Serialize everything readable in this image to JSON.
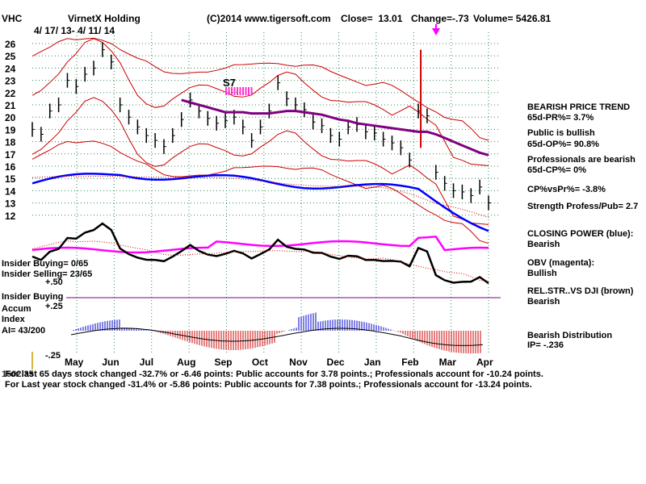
{
  "header": {
    "ticker": "VHC",
    "company": "VirnetX Holding",
    "source": "(C)2014 www.tigersoft.com",
    "close": "Close=  13.01",
    "change": "Change=-.73",
    "volume": "Volume= 5426.81",
    "date_range": "4/ 17/ 13-  4/ 11/ 14"
  },
  "chart_data": {
    "type": "line",
    "title": "VirnetX Holding",
    "x_categories": [
      "May",
      "Jun",
      "Jul",
      "Aug",
      "Sep",
      "Oct",
      "Nov",
      "Dec",
      "Jan",
      "Feb",
      "Mar",
      "Apr"
    ],
    "y_ticks": [
      12,
      13,
      14,
      15,
      16,
      17,
      18,
      19,
      20,
      21,
      22,
      23,
      24,
      25,
      26
    ],
    "ylim": [
      11.5,
      26.5
    ],
    "grid": true,
    "price_series": {
      "name": "Close",
      "values": [
        19,
        18.6,
        20.5,
        21,
        23,
        22.5,
        23.5,
        24,
        25.5,
        24.5,
        21,
        20,
        19.2,
        18.5,
        18.1,
        17.6,
        18.5,
        19.8,
        21.4,
        20.5,
        19.9,
        19.5,
        19.7,
        20,
        19.2,
        18.1,
        19.2,
        20.5,
        22.8,
        21.5,
        21,
        20.6,
        19.6,
        19.3,
        18.5,
        18.2,
        19.2,
        19.4,
        18.8,
        18.7,
        18.2,
        17.9,
        17.5,
        16.5,
        20.5,
        20.1,
        15.5,
        14.6,
        14,
        13.9,
        13.6,
        14.3,
        13.01
      ]
    },
    "ma_65_day": {
      "name": "65-day MA",
      "color": "#800080",
      "values": [
        null,
        null,
        null,
        null,
        null,
        null,
        null,
        null,
        null,
        null,
        null,
        null,
        null,
        null,
        null,
        null,
        null,
        21.4,
        21.2,
        21,
        20.8,
        20.6,
        20.4,
        20.4,
        20.4,
        20.3,
        20.3,
        20.3,
        20.4,
        20.5,
        20.5,
        20.4,
        20.3,
        20.2,
        20,
        19.8,
        19.7,
        19.5,
        19.4,
        19.3,
        19.2,
        19.1,
        19,
        18.9,
        18.8,
        18.8,
        18.6,
        18.3,
        18,
        17.7,
        17.4,
        17.1,
        16.9
      ]
    },
    "buy_signal": "S7",
    "sell_marker_note": "magenta arrow near Feb high",
    "indicators": [
      {
        "name": "CLOSING POWER (blue)",
        "color": "#0000ff"
      },
      {
        "name": "OBV (magenta)",
        "color": "#ff00ff"
      },
      {
        "name": "REL.STR..VS DJI (brown)",
        "color": "#000000"
      },
      {
        "name": "Insider Buying Accum Index",
        "color_pos": "#0000cc",
        "color_neg": "#cc0000"
      }
    ],
    "accum_index_levels": [
      "+.50",
      "+.25",
      "-.25"
    ]
  },
  "right_panel": [
    {
      "text": "BEARISH PRICE TREND",
      "indent": false
    },
    {
      "text": "65d-PR%= 3.7%",
      "indent": true
    },
    {
      "text": "Public is bullish",
      "indent": false
    },
    {
      "text": "65d-OP%= 90.8%",
      "indent": true
    },
    {
      "text": "Professionals are bearish",
      "indent": false
    },
    {
      "text": "65d-CP%= 0%",
      "indent": true
    },
    {
      "text": "CP%vsPr%= -3.8%",
      "indent": false
    },
    {
      "text": "Strength Profess/Pub= 2.7",
      "indent": false
    },
    {
      "text": "CLOSING POWER (blue):",
      "indent": false
    },
    {
      "text": "Bearish",
      "indent": false
    },
    {
      "text": "OBV (magenta):",
      "indent": false
    },
    {
      "text": "Bullish",
      "indent": false
    },
    {
      "text": "REL.STR..VS DJI (brown)",
      "indent": false
    },
    {
      "text": "Bearish",
      "indent": false
    },
    {
      "text": "Bearish Distribution",
      "indent": false
    },
    {
      "text": "IP= -.236",
      "indent": true
    }
  ],
  "left_panel": {
    "insider_buying_ratio": "Insider Buying= 0/65",
    "insider_selling_ratio": "Insider Selling= 23/65",
    "insider_buying_label": "Insider Buying",
    "accum_label": "Accum",
    "index_label": "Index",
    "ai_label": "AI= 43/200",
    "level_050": "+.50",
    "level_025": "+.25",
    "level_neg025": "-.25"
  },
  "footer": {
    "line1": "For last 65 days stock changed -32.7% or -6.46 points:  Public accounts for  3.78 points.;  Professionals account for -10.24 points.",
    "line1_overlap": "1502.35",
    "line2": "For Last year stock changed -31.4% or -5.86 points:  Public accounts for  7.38 points.;  Professionals account for -13.24 points."
  }
}
